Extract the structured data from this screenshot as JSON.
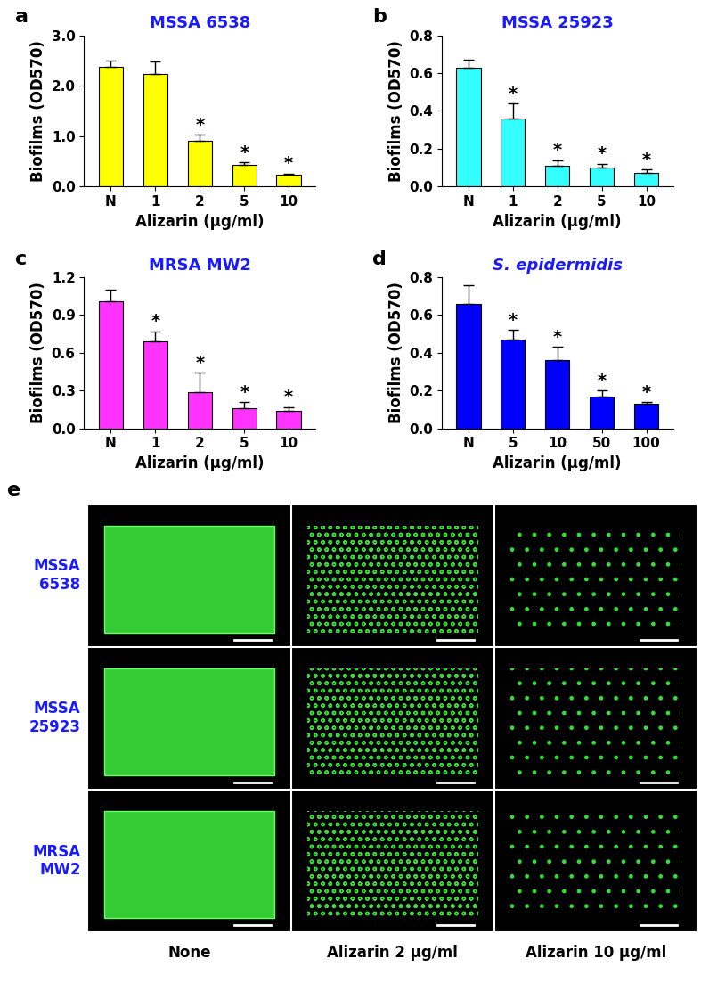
{
  "chart_data": [
    {
      "type": "bar",
      "panel": "a",
      "title": "MSSA 6538",
      "x_label": "Alizarin (µg/ml)",
      "y_label": "Biofilms (OD570)",
      "categories": [
        "N",
        "1",
        "2",
        "5",
        "10"
      ],
      "values": [
        2.37,
        2.23,
        0.91,
        0.42,
        0.23
      ],
      "errors": [
        0.13,
        0.25,
        0.12,
        0.06,
        0.03
      ],
      "significance": [
        null,
        null,
        "*",
        "*",
        "*"
      ],
      "color": "#ffff00",
      "ylim": [
        0,
        3.0
      ],
      "yticks": [
        {
          "value": 0,
          "label": "0.0"
        },
        {
          "value": 1.0,
          "label": "1.0"
        },
        {
          "value": 2.0,
          "label": "2.0"
        },
        {
          "value": 3.0,
          "label": "3.0"
        }
      ]
    },
    {
      "type": "bar",
      "panel": "b",
      "title": "MSSA 25923",
      "x_label": "Alizarin (µg/ml)",
      "y_label": "Biofilms (OD570)",
      "categories": [
        "N",
        "1",
        "2",
        "5",
        "10"
      ],
      "values": [
        0.63,
        0.36,
        0.11,
        0.1,
        0.07
      ],
      "errors": [
        0.04,
        0.08,
        0.03,
        0.02,
        0.02
      ],
      "significance": [
        null,
        "*",
        "*",
        "*",
        "*"
      ],
      "color": "#33ffff",
      "ylim": [
        0,
        0.8
      ],
      "yticks": [
        {
          "value": 0,
          "label": "0.0"
        },
        0.2,
        0.4,
        0.6,
        0.8
      ]
    },
    {
      "type": "bar",
      "panel": "c",
      "title": "MRSA MW2",
      "x_label": "Alizarin (µg/ml)",
      "y_label": "Biofilms (OD570)",
      "categories": [
        "N",
        "1",
        "2",
        "5",
        "10"
      ],
      "values": [
        1.01,
        0.69,
        0.29,
        0.16,
        0.14
      ],
      "errors": [
        0.09,
        0.08,
        0.15,
        0.05,
        0.03
      ],
      "significance": [
        null,
        "*",
        "*",
        "*",
        "*"
      ],
      "color": "#ff33ff",
      "ylim": [
        0,
        1.2
      ],
      "yticks": [
        {
          "value": 0,
          "label": "0.0"
        },
        0.3,
        0.6,
        0.9,
        1.2
      ]
    },
    {
      "type": "bar",
      "panel": "d",
      "title": "S. epidermidis",
      "x_label": "Alizarin (µg/ml)",
      "y_label": "Biofilms (OD570)",
      "categories": [
        "N",
        "5",
        "10",
        "50",
        "100"
      ],
      "values": [
        0.66,
        0.47,
        0.36,
        0.17,
        0.13
      ],
      "errors": [
        0.1,
        0.05,
        0.07,
        0.03,
        0.01
      ],
      "significance": [
        null,
        "*",
        "*",
        "*",
        "*"
      ],
      "color": "#0000ff",
      "ylim": [
        0,
        0.8
      ],
      "yticks": [
        {
          "value": 0,
          "label": "0.0"
        },
        0.2,
        0.4,
        0.6,
        0.8
      ]
    }
  ],
  "image_panel": {
    "panel": "e",
    "rows": [
      "MSSA\n6538",
      "MSSA\n25923",
      "MRSA\nMW2"
    ],
    "columns": [
      "None",
      "Alizarin 2 µg/ml",
      "Alizarin 10 µg/ml"
    ]
  }
}
